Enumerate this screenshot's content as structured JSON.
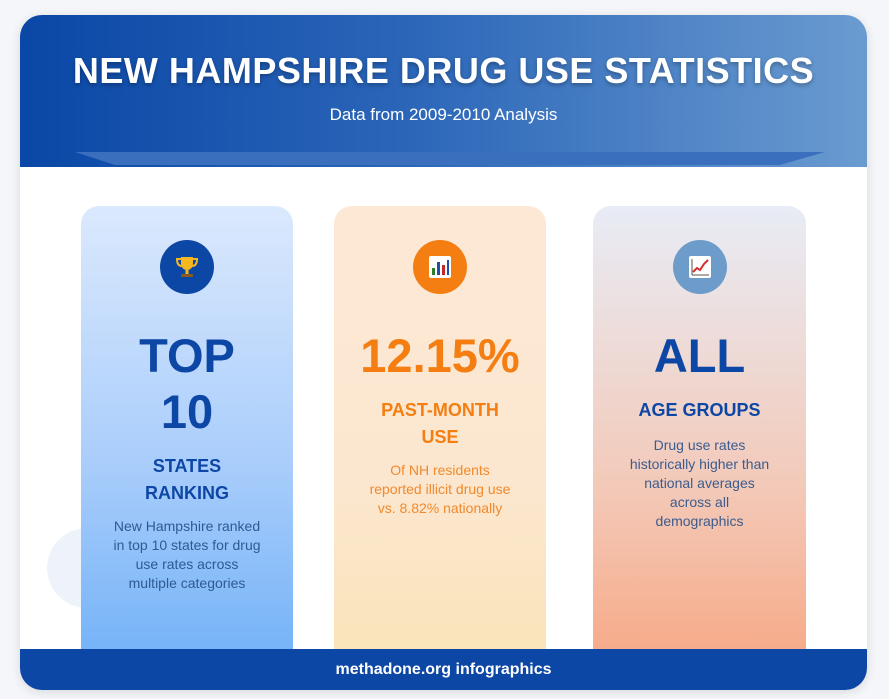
{
  "header": {
    "title": "NEW HAMPSHIRE DRUG USE STATISTICS",
    "subtitle": "Data from 2009-2010 Analysis"
  },
  "stats": [
    {
      "icon": "trophy-icon",
      "big_line1": "TOP",
      "big_line2": "10",
      "label_line1": "STATES",
      "label_line2": "RANKING",
      "description": [
        "New Hampshire ranked",
        "in top 10 states for drug",
        "use rates across",
        "multiple categories"
      ]
    },
    {
      "icon": "bar-chart-icon",
      "big_line1": "12.15%",
      "label_line1": "PAST-MONTH",
      "label_line2": "USE",
      "description": [
        "Of NH residents",
        "reported illicit drug use",
        "vs. 8.82% nationally"
      ]
    },
    {
      "icon": "trending-up-chart-icon",
      "big_line1": "ALL",
      "label_line1": "AGE GROUPS",
      "description": [
        "Drug use rates",
        "historically higher than",
        "national averages",
        "across all",
        "demographics"
      ]
    }
  ],
  "footer": {
    "text": "methadone.org infographics"
  },
  "colors": {
    "primary_blue": "#0d47a5",
    "accent_orange": "#f47e11",
    "muted_blue": "#6d9ccb"
  }
}
